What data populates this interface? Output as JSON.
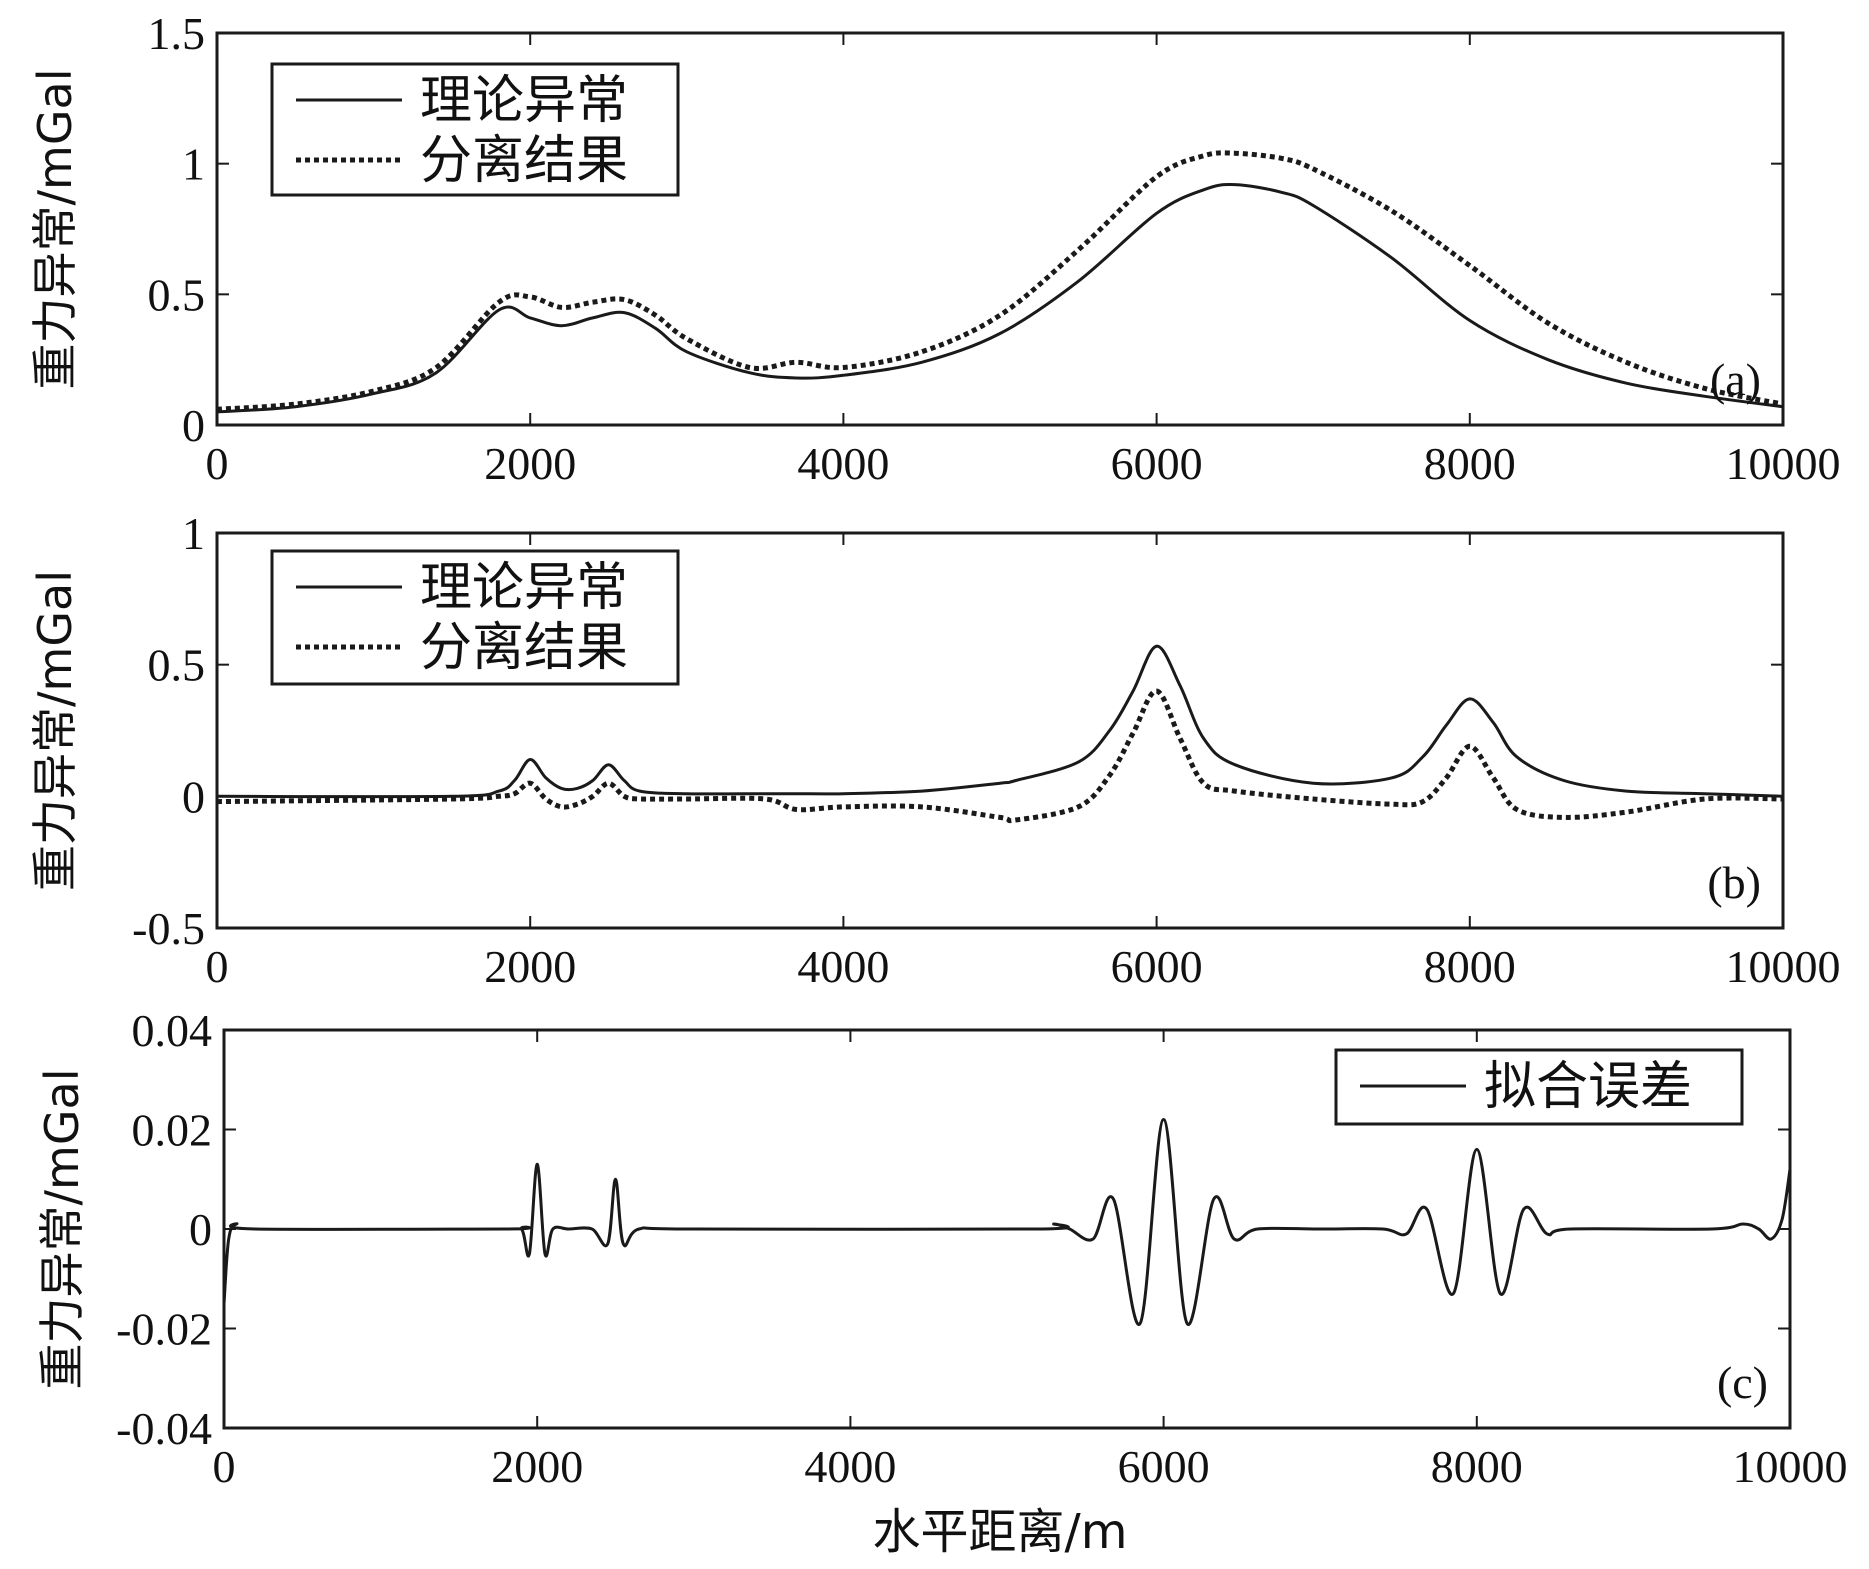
{
  "colors": {
    "line": "#1a1a1a",
    "background": "#ffffff"
  },
  "xlabel": "水平距离/m",
  "chart_data": [
    {
      "type": "line",
      "panel_label": "(a)",
      "ylabel": "重力异常/mGal",
      "xlim": [
        0,
        10000
      ],
      "ylim": [
        0,
        1.5
      ],
      "x_ticks": [
        "0",
        "2000",
        "4000",
        "6000",
        "8000",
        "10000"
      ],
      "y_ticks": [
        "0",
        "0.5",
        "1",
        "1.5"
      ],
      "legend_position": "top-left",
      "grid": false,
      "x": [
        0,
        500,
        1000,
        1400,
        1800,
        2000,
        2200,
        2400,
        2600,
        2800,
        3000,
        3400,
        3700,
        4000,
        4500,
        5000,
        5500,
        6000,
        6300,
        6500,
        6800,
        7000,
        7500,
        8000,
        8500,
        9000,
        9500,
        10000
      ],
      "series": [
        {
          "name": "理论异常",
          "style": "solid",
          "values": [
            0.05,
            0.07,
            0.12,
            0.2,
            0.44,
            0.41,
            0.38,
            0.41,
            0.43,
            0.37,
            0.28,
            0.2,
            0.18,
            0.19,
            0.24,
            0.35,
            0.55,
            0.81,
            0.9,
            0.92,
            0.89,
            0.84,
            0.64,
            0.4,
            0.25,
            0.16,
            0.11,
            0.07
          ]
        },
        {
          "name": "分离结果",
          "style": "dotted",
          "values": [
            0.06,
            0.08,
            0.13,
            0.22,
            0.47,
            0.49,
            0.45,
            0.47,
            0.48,
            0.42,
            0.33,
            0.22,
            0.24,
            0.22,
            0.28,
            0.42,
            0.67,
            0.95,
            1.03,
            1.04,
            1.02,
            0.98,
            0.82,
            0.61,
            0.39,
            0.24,
            0.14,
            0.08
          ]
        }
      ]
    },
    {
      "type": "line",
      "panel_label": "(b)",
      "ylabel": "重力异常/mGal",
      "xlim": [
        0,
        10000
      ],
      "ylim": [
        -0.5,
        1
      ],
      "x_ticks": [
        "0",
        "2000",
        "4000",
        "6000",
        "8000",
        "10000"
      ],
      "y_ticks": [
        "-0.5",
        "0",
        "0.5",
        "1"
      ],
      "legend_position": "top-left",
      "grid": false,
      "x": [
        0,
        1500,
        1800,
        1900,
        2000,
        2100,
        2200,
        2300,
        2400,
        2500,
        2600,
        2700,
        3000,
        3500,
        3700,
        4000,
        4500,
        5000,
        5100,
        5500,
        5700,
        5850,
        6000,
        6150,
        6300,
        6500,
        7000,
        7500,
        7700,
        7850,
        8000,
        8150,
        8300,
        8600,
        9000,
        9500,
        10000
      ],
      "series": [
        {
          "name": "理论异常",
          "style": "solid",
          "values": [
            0.0,
            0.0,
            0.02,
            0.06,
            0.14,
            0.07,
            0.03,
            0.03,
            0.06,
            0.12,
            0.06,
            0.02,
            0.01,
            0.01,
            0.01,
            0.01,
            0.02,
            0.05,
            0.06,
            0.13,
            0.25,
            0.4,
            0.57,
            0.42,
            0.22,
            0.12,
            0.05,
            0.07,
            0.15,
            0.27,
            0.37,
            0.28,
            0.15,
            0.06,
            0.02,
            0.01,
            0.0
          ]
        },
        {
          "name": "分离结果",
          "style": "dotted",
          "values": [
            -0.02,
            -0.01,
            0.0,
            0.01,
            0.05,
            -0.01,
            -0.04,
            -0.03,
            0.0,
            0.05,
            0.0,
            -0.01,
            -0.01,
            -0.01,
            -0.05,
            -0.04,
            -0.04,
            -0.08,
            -0.09,
            -0.04,
            0.08,
            0.24,
            0.4,
            0.22,
            0.05,
            0.02,
            -0.01,
            -0.03,
            -0.02,
            0.07,
            0.19,
            0.07,
            -0.05,
            -0.08,
            -0.06,
            -0.01,
            -0.01
          ]
        }
      ]
    },
    {
      "type": "line",
      "panel_label": "(c)",
      "ylabel": "重力异常/mGal",
      "xlim": [
        0,
        10000
      ],
      "ylim": [
        -0.04,
        0.04
      ],
      "x_ticks": [
        "0",
        "2000",
        "4000",
        "6000",
        "8000",
        "10000"
      ],
      "y_ticks": [
        "-0.04",
        "-0.02",
        "0",
        "0.02",
        "0.04"
      ],
      "legend_position": "top-right",
      "grid": false,
      "x": [
        0,
        30,
        80,
        200,
        1800,
        1900,
        1950,
        2000,
        2050,
        2100,
        2200,
        2350,
        2450,
        2500,
        2550,
        2650,
        3000,
        5200,
        5300,
        5400,
        5550,
        5680,
        5850,
        6000,
        6150,
        6320,
        6450,
        6600,
        7000,
        7400,
        7550,
        7680,
        7850,
        8000,
        8150,
        8300,
        8450,
        8600,
        9500,
        9700,
        9800,
        9880,
        9950,
        10000
      ],
      "series": [
        {
          "name": "拟合误差",
          "style": "solid",
          "values": [
            -0.015,
            -0.002,
            0.001,
            0.0,
            0.0,
            0.0,
            -0.005,
            0.013,
            -0.005,
            0.0,
            0.0,
            0.0,
            -0.003,
            0.01,
            -0.003,
            0.0,
            0.0,
            0.0,
            0.001,
            0.0,
            -0.002,
            0.006,
            -0.019,
            0.022,
            -0.019,
            0.006,
            -0.002,
            0.0,
            0.0,
            0.0,
            -0.001,
            0.004,
            -0.013,
            0.016,
            -0.013,
            0.004,
            -0.001,
            0.0,
            0.0,
            0.001,
            0.0,
            -0.002,
            0.002,
            0.012
          ]
        }
      ]
    }
  ]
}
